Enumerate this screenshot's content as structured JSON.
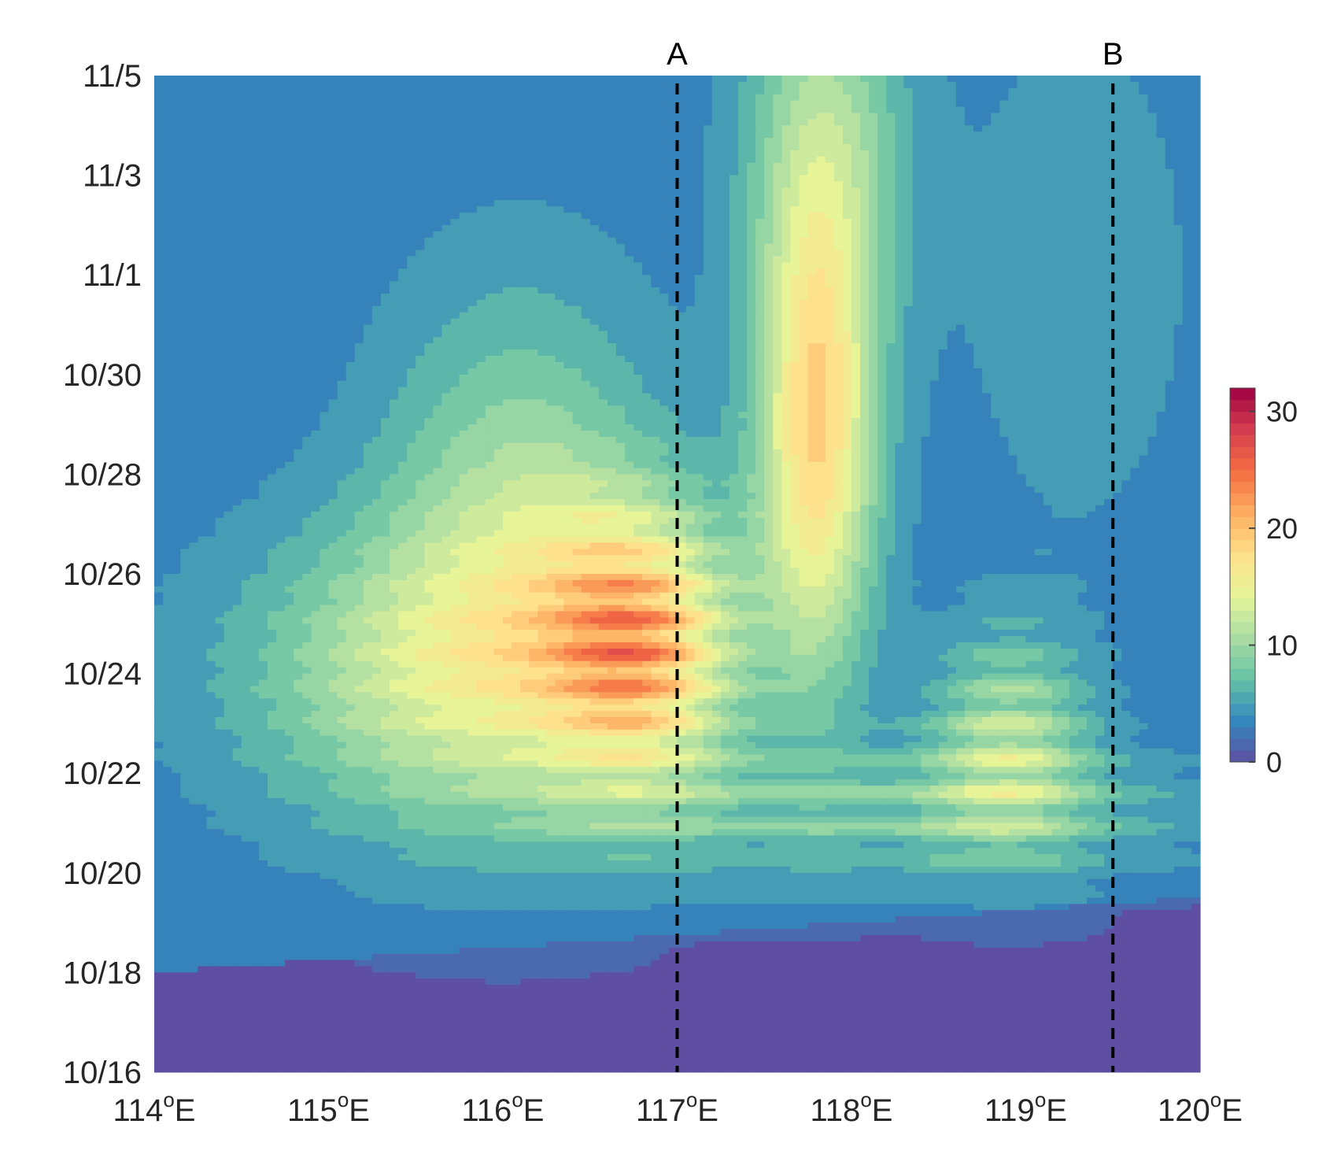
{
  "chart_data": {
    "type": "heatmap",
    "title": "",
    "xlabel": "",
    "ylabel": "",
    "x_ticks": [
      {
        "value": 114,
        "base": "114",
        "sup": "o",
        "suffix": "E"
      },
      {
        "value": 115,
        "base": "115",
        "sup": "o",
        "suffix": "E"
      },
      {
        "value": 116,
        "base": "116",
        "sup": "o",
        "suffix": "E"
      },
      {
        "value": 117,
        "base": "117",
        "sup": "o",
        "suffix": "E"
      },
      {
        "value": 118,
        "base": "118",
        "sup": "o",
        "suffix": "E"
      },
      {
        "value": 119,
        "base": "119",
        "sup": "o",
        "suffix": "E"
      },
      {
        "value": 120,
        "base": "120",
        "sup": "o",
        "suffix": "E"
      }
    ],
    "y_ticks": [
      {
        "value": 0,
        "label": "10/16"
      },
      {
        "value": 2,
        "label": "10/18"
      },
      {
        "value": 4,
        "label": "10/20"
      },
      {
        "value": 6,
        "label": "10/22"
      },
      {
        "value": 8,
        "label": "10/24"
      },
      {
        "value": 10,
        "label": "10/26"
      },
      {
        "value": 12,
        "label": "10/28"
      },
      {
        "value": 14,
        "label": "10/30"
      },
      {
        "value": 16,
        "label": "11/1"
      },
      {
        "value": 18,
        "label": "11/3"
      },
      {
        "value": 20,
        "label": "11/5"
      }
    ],
    "xlim": [
      114,
      120
    ],
    "ylim": [
      0,
      20
    ],
    "markers": [
      {
        "label": "A",
        "x": 117.0
      },
      {
        "label": "B",
        "x": 119.5
      }
    ],
    "colorbar": {
      "range": [
        0,
        32
      ],
      "ticks": [
        {
          "value": 0,
          "label": "0"
        },
        {
          "value": 10,
          "label": "10"
        },
        {
          "value": 20,
          "label": "20"
        },
        {
          "value": 30,
          "label": "30"
        }
      ],
      "colormap": [
        "#5e4fa2",
        "#3288bd",
        "#66c2a5",
        "#abdda4",
        "#e6f598",
        "#fee08b",
        "#fdae61",
        "#f46d43",
        "#d53e4f",
        "#9e0142"
      ]
    },
    "features": [
      {
        "x": 116.8,
        "y": 8.6,
        "sx": 0.38,
        "sy": 1.9,
        "amp": 17,
        "ripple": 0.35
      },
      {
        "x": 115.7,
        "y": 8.0,
        "sx": 0.85,
        "sy": 2.1,
        "amp": 10,
        "ripple": 0.15
      },
      {
        "x": 116.1,
        "y": 11.2,
        "sx": 0.55,
        "sy": 3.2,
        "amp": 7,
        "ripple": 0.0
      },
      {
        "x": 117.8,
        "y": 12.8,
        "sx": 0.24,
        "sy": 3.3,
        "amp": 15,
        "ripple": 0.0
      },
      {
        "x": 117.85,
        "y": 18.6,
        "sx": 0.33,
        "sy": 2.8,
        "amp": 7,
        "ripple": 0.0
      },
      {
        "x": 118.9,
        "y": 6.6,
        "sx": 0.32,
        "sy": 1.5,
        "amp": 10,
        "ripple": 0.4
      },
      {
        "x": 118.2,
        "y": 5.2,
        "sx": 1.3,
        "sy": 0.9,
        "amp": 6,
        "ripple": 0.55
      },
      {
        "x": 119.3,
        "y": 16.0,
        "sx": 0.5,
        "sy": 4.0,
        "amp": 2,
        "ripple": 0.0
      }
    ]
  }
}
